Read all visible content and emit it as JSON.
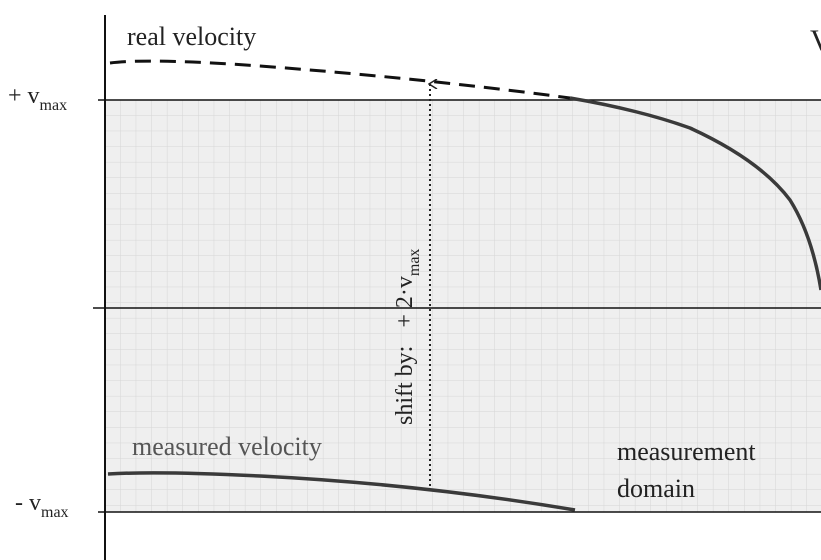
{
  "labels": {
    "real_velocity": "real velocity",
    "plus_vmax": {
      "text": "+ v",
      "sub": "max"
    },
    "minus_vmax": {
      "text": "- v",
      "sub": "max"
    },
    "measured_velocity": "measured velocity",
    "measurement_domain": [
      "measurement",
      "domain"
    ],
    "shift": {
      "text": "shift by:   + 2·v",
      "sub": "max"
    },
    "corner": "V"
  }
}
